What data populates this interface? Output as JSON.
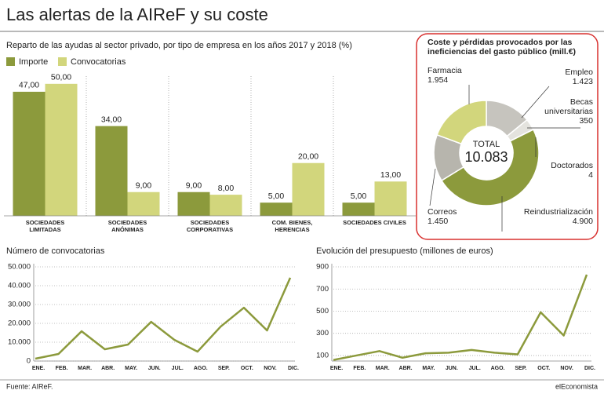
{
  "title": "Las alertas de la AIReF y su coste",
  "source": "Fuente: AIReF.",
  "brand": "elEconomista",
  "chart_data": [
    {
      "type": "bar",
      "title": "Reparto de las ayudas al sector privado, por tipo de empresa en los años 2017 y 2018 (%)",
      "categories": [
        "SOCIEDADES\nLIMITADAS",
        "SOCIEDADES\nANÓNIMAS",
        "SOCIEDADES\nCORPORATIVAS",
        "COM. BIENES,\nHERENCIAS",
        "SOCIEDADES CIVILES"
      ],
      "series": [
        {
          "name": "Importe",
          "color": "#8c9a3c",
          "values": [
            47,
            34,
            9,
            5,
            5
          ],
          "value_labels": [
            "47,00",
            "34,00",
            "9,00",
            "5,00",
            "5,00"
          ]
        },
        {
          "name": "Convocatorias",
          "color": "#d2d67c",
          "values": [
            50,
            9,
            8,
            20,
            13
          ],
          "value_labels": [
            "50,00",
            "9,00",
            "8,00",
            "20,00",
            "13,00"
          ]
        }
      ],
      "ylim": [
        0,
        55
      ],
      "legend": "top-left"
    },
    {
      "type": "pie",
      "title": "Coste y pérdidas provocados por las ineficiencias del gasto público (mill.€)",
      "categories": [
        "Empleo",
        "Becas\nuniversitarias",
        "Doctorados",
        "Reindustrialización",
        "Correos",
        "Farmacia"
      ],
      "values": [
        1423,
        350,
        4,
        4900,
        1450,
        1954
      ],
      "value_labels": [
        "1.423",
        "350",
        "4",
        "4.900",
        "1.450",
        "1.954"
      ],
      "colors": [
        "#c6c4be",
        "#e4e3de",
        "#f4f4f0",
        "#8c9a3c",
        "#b7b5ad",
        "#d2d67c"
      ],
      "center_label": "TOTAL",
      "total": 10083,
      "total_label": "10.083"
    },
    {
      "type": "line",
      "title": "Número de convocatorias",
      "categories": [
        "ENE.",
        "FEB.",
        "MAR.",
        "ABR.",
        "MAY.",
        "JUN.",
        "JUL.",
        "AGO.",
        "SEP.",
        "OCT.",
        "NOV.",
        "DIC."
      ],
      "values": [
        1250,
        3750,
        15800,
        6250,
        8750,
        20800,
        11250,
        5000,
        18300,
        28300,
        16250,
        44200
      ],
      "color": "#8c9a3c",
      "ylim": [
        0,
        50000
      ],
      "yticks": [
        0,
        {
          "value": 10000,
          "label": "10.000"
        },
        {
          "value": 20000,
          "label": "20.000"
        },
        {
          "value": 30000,
          "label": "30.000"
        },
        {
          "value": 40000,
          "label": "40.000"
        },
        {
          "value": 50000,
          "label": "50.000"
        }
      ],
      "grid": true
    },
    {
      "type": "line",
      "title": "Evolución del presupuesto (millones de euros)",
      "categories": [
        "ENE.",
        "FEB.",
        "MAR.",
        "ABR.",
        "MAY.",
        "JUN.",
        "JUL.",
        "AGO.",
        "SEP.",
        "OCT.",
        "NOV.",
        "DIC."
      ],
      "values": [
        60,
        100,
        140,
        80,
        120,
        125,
        150,
        125,
        110,
        490,
        280,
        830
      ],
      "color": "#8c9a3c",
      "ylim": [
        50,
        900
      ],
      "yticks": [
        100,
        300,
        500,
        700,
        900
      ],
      "grid": true
    }
  ]
}
